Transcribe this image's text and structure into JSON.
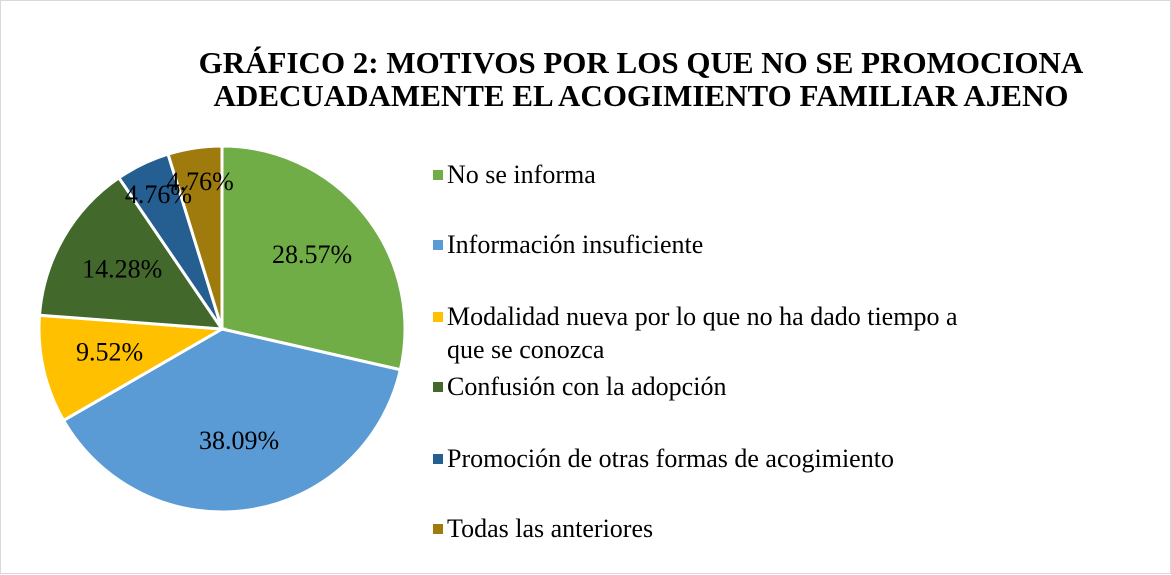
{
  "chart_data": {
    "type": "pie",
    "title": "GRÁFICO 2: MOTIVOS POR LOS QUE NO SE PROMOCIONA ADECUADAMENTE EL ACOGIMIENTO FAMILIAR AJENO",
    "categories": [
      "No se informa",
      "Información insuficiente",
      "Modalidad nueva por lo que no ha dado tiempo a que se conozca",
      "Confusión con la adopción",
      "Promoción de otras formas de acogimiento",
      "Todas las anteriores"
    ],
    "values": [
      28.57,
      38.09,
      9.52,
      14.28,
      4.76,
      4.76
    ],
    "value_labels": [
      "28.57%",
      "38.09%",
      "9.52%",
      "14.28%",
      "4.76%",
      "4.76%"
    ],
    "colors": [
      "#70ad47",
      "#5b9bd5",
      "#ffc000",
      "#43682b",
      "#255e91",
      "#9e7b0c"
    ],
    "legend": "right"
  }
}
